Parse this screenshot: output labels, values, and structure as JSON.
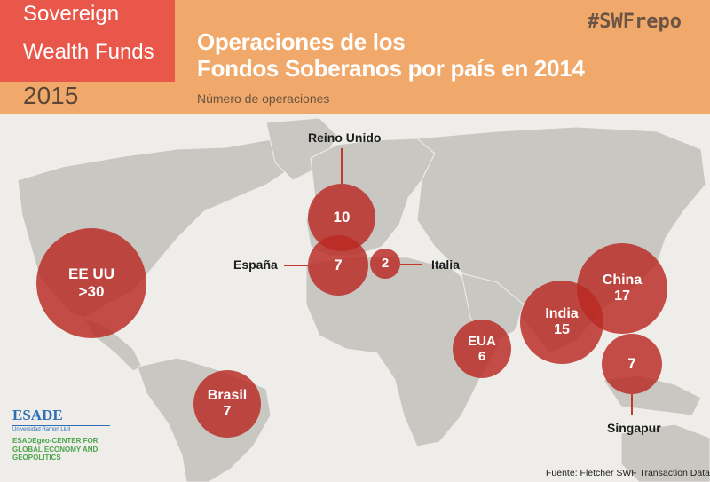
{
  "header": {
    "brand_line1": "Sovereign",
    "brand_line2": "Wealth Funds",
    "year": "2015",
    "title_line1": "Operaciones de los",
    "title_line2": "Fondos Soberanos por país en 2014",
    "subtitle": "Número de operaciones",
    "hashtag": "#SWFrepo"
  },
  "colors": {
    "header_bg": "#f0a96a",
    "brand_bg": "#e8574a",
    "bubble": "#ba2a22",
    "land": "#c9c7c2",
    "sea": "#eeedea"
  },
  "bubbles": [
    {
      "country": "EE UU",
      "value": ">30",
      "label_inside": true
    },
    {
      "country": "Reino Unido",
      "value": "10",
      "label_inside": false
    },
    {
      "country": "España",
      "value": "7",
      "label_inside": false
    },
    {
      "country": "Italia",
      "value": "2",
      "label_inside": false
    },
    {
      "country": "EUA",
      "value": "6",
      "label_inside": true
    },
    {
      "country": "India",
      "value": "15",
      "label_inside": true
    },
    {
      "country": "China",
      "value": "17",
      "label_inside": true
    },
    {
      "country": "Singapur",
      "value": "7",
      "label_inside": false
    },
    {
      "country": "Brasil",
      "value": "7",
      "label_inside": true
    }
  ],
  "logo": {
    "name": "ESADE",
    "university": "Universidad Ramon Llull",
    "center": "ESADEgeo-CENTER FOR GLOBAL ECONOMY AND GEOPOLITICS"
  },
  "source": "Fuente: Fletcher SWF Transaction Database"
}
